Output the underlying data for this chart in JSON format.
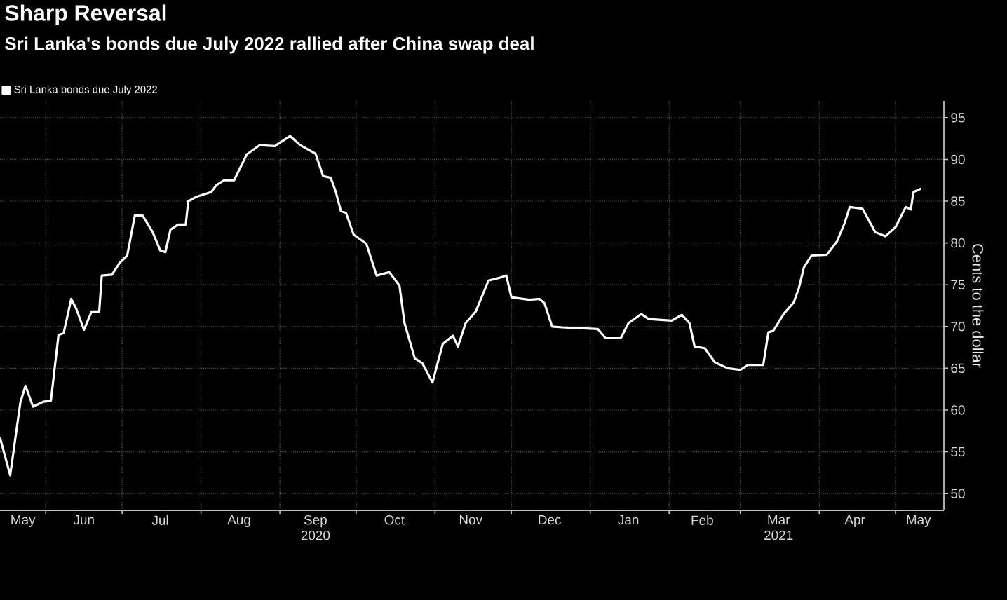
{
  "chart_data": {
    "type": "line",
    "title": "Sharp Reversal",
    "subtitle": "Sri Lanka's bonds due July 2022 rallied after China swap deal",
    "ylabel": "Cents to the dollar",
    "x": [
      "2020-05-14",
      "2020-05-18",
      "2020-05-22",
      "2020-05-24",
      "2020-05-27",
      "2020-05-31",
      "2020-06-03",
      "2020-06-06",
      "2020-06-08",
      "2020-06-11",
      "2020-06-13",
      "2020-06-16",
      "2020-06-19",
      "2020-06-22",
      "2020-06-23",
      "2020-06-27",
      "2020-06-30",
      "2020-07-03",
      "2020-07-06",
      "2020-07-09",
      "2020-07-13",
      "2020-07-16",
      "2020-07-18",
      "2020-07-20",
      "2020-07-23",
      "2020-07-26",
      "2020-07-27",
      "2020-07-30",
      "2020-08-05",
      "2020-08-07",
      "2020-08-10",
      "2020-08-14",
      "2020-08-19",
      "2020-08-24",
      "2020-08-30",
      "2020-09-05",
      "2020-09-09",
      "2020-09-15",
      "2020-09-18",
      "2020-09-21",
      "2020-09-23",
      "2020-09-25",
      "2020-09-27",
      "2020-09-30",
      "2020-10-05",
      "2020-10-09",
      "2020-10-14",
      "2020-10-18",
      "2020-10-20",
      "2020-10-24",
      "2020-10-27",
      "2020-10-31",
      "2020-11-04",
      "2020-11-08",
      "2020-11-10",
      "2020-11-13",
      "2020-11-17",
      "2020-11-22",
      "2020-11-26",
      "2020-11-29",
      "2020-12-01",
      "2020-12-08",
      "2020-12-12",
      "2020-12-14",
      "2020-12-17",
      "2020-12-21",
      "2021-01-04",
      "2021-01-07",
      "2021-01-13",
      "2021-01-16",
      "2021-01-21",
      "2021-01-24",
      "2021-02-02",
      "2021-02-06",
      "2021-02-09",
      "2021-02-11",
      "2021-02-15",
      "2021-02-19",
      "2021-02-24",
      "2021-03-01",
      "2021-03-04",
      "2021-03-10",
      "2021-03-12",
      "2021-03-14",
      "2021-03-18",
      "2021-03-22",
      "2021-03-24",
      "2021-03-26",
      "2021-03-29",
      "2021-04-04",
      "2021-04-08",
      "2021-04-11",
      "2021-04-13",
      "2021-04-18",
      "2021-04-23",
      "2021-04-27",
      "2021-05-01",
      "2021-05-05",
      "2021-05-07",
      "2021-05-08",
      "2021-05-11"
    ],
    "series": [
      {
        "name": "Sri Lanka bonds due July 2022",
        "color": "#ffffff",
        "values": [
          56.7,
          52.2,
          60.9,
          62.9,
          60.4,
          61.0,
          61.1,
          69.0,
          69.2,
          73.3,
          72.1,
          69.6,
          71.8,
          71.8,
          76.1,
          76.2,
          77.6,
          78.5,
          83.3,
          83.3,
          81.3,
          79.1,
          78.9,
          81.6,
          82.2,
          82.2,
          85.0,
          85.5,
          86.1,
          86.9,
          87.5,
          87.5,
          90.6,
          91.7,
          91.6,
          92.8,
          91.7,
          90.7,
          88.0,
          87.8,
          86.1,
          83.8,
          83.6,
          81.0,
          79.9,
          76.1,
          76.5,
          74.9,
          70.4,
          66.2,
          65.6,
          63.3,
          67.9,
          68.9,
          67.6,
          70.4,
          71.8,
          75.5,
          75.8,
          76.1,
          73.5,
          73.2,
          73.3,
          72.8,
          70.0,
          69.9,
          69.7,
          68.6,
          68.6,
          70.4,
          71.5,
          70.9,
          70.7,
          71.4,
          70.4,
          67.6,
          67.4,
          65.7,
          65.0,
          64.8,
          65.4,
          65.4,
          69.3,
          69.5,
          71.5,
          72.9,
          74.6,
          77.1,
          78.5,
          78.6,
          80.2,
          82.4,
          84.3,
          84.1,
          81.3,
          80.8,
          81.9,
          84.3,
          84.0,
          86.1,
          86.5
        ]
      }
    ],
    "xlim": [
      "2020-05-14",
      "2021-05-20"
    ],
    "ylim": [
      48,
      97
    ],
    "xticks": [
      {
        "value": "2020-06-01",
        "label": null
      },
      {
        "value": "2020-07-01",
        "label": null
      },
      {
        "value": "2020-08-01",
        "label": null
      },
      {
        "value": "2020-09-01",
        "label": null
      },
      {
        "value": "2020-10-01",
        "label": null
      },
      {
        "value": "2020-11-01",
        "label": null
      },
      {
        "value": "2020-12-01",
        "label": null
      },
      {
        "value": "2021-01-01",
        "label": null
      },
      {
        "value": "2021-02-01",
        "label": null
      },
      {
        "value": "2021-03-01",
        "label": null
      },
      {
        "value": "2021-04-01",
        "label": null
      },
      {
        "value": "2021-05-01",
        "label": null
      },
      {
        "value": "2020-05-23",
        "label": "May"
      },
      {
        "value": "2020-06-16",
        "label": "Jun"
      },
      {
        "value": "2020-07-16",
        "label": "Jul"
      },
      {
        "value": "2020-08-16",
        "label": "Aug"
      },
      {
        "value": "2020-09-15",
        "label": "Sep 2020"
      },
      {
        "value": "2020-10-16",
        "label": "Oct"
      },
      {
        "value": "2020-11-15",
        "label": "Nov"
      },
      {
        "value": "2020-12-16",
        "label": "Dec"
      },
      {
        "value": "2021-01-16",
        "label": "Jan"
      },
      {
        "value": "2021-02-14",
        "label": "Feb"
      },
      {
        "value": "2021-03-16",
        "label": "Mar 2021"
      },
      {
        "value": "2021-04-15",
        "label": "Apr"
      },
      {
        "value": "2021-05-10",
        "label": "May"
      }
    ],
    "yticks": [
      50,
      55,
      60,
      65,
      70,
      75,
      80,
      85,
      90,
      95
    ],
    "grid": true,
    "legend": "top left",
    "line_style": "solid"
  }
}
